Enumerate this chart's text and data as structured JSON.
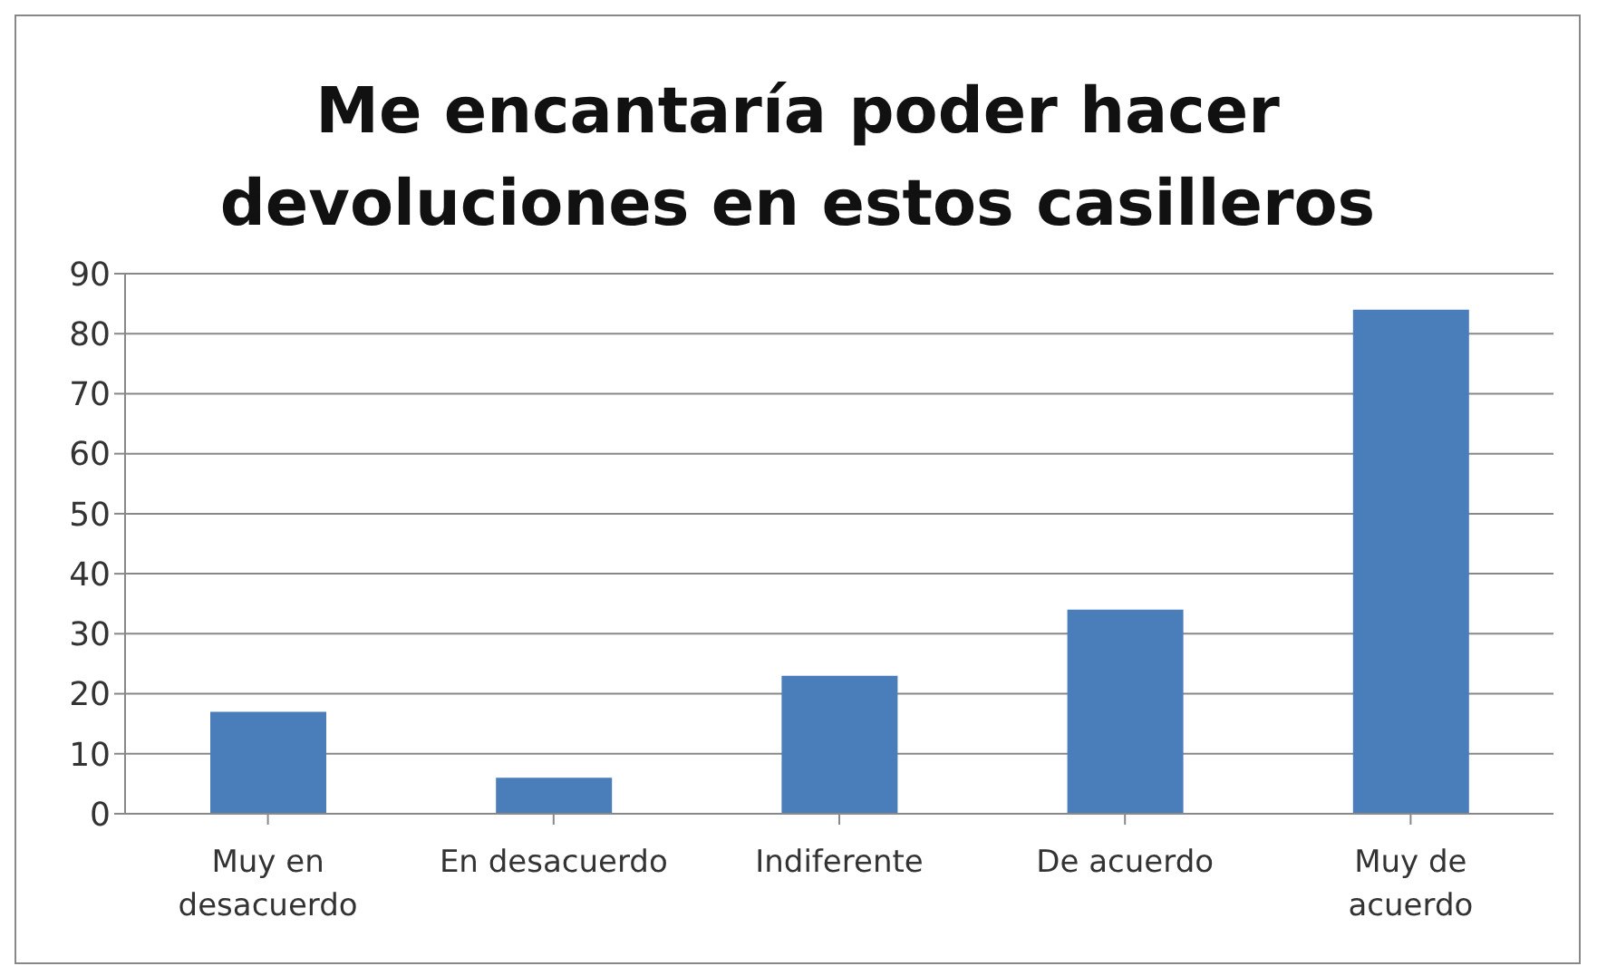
{
  "chart_data": {
    "type": "bar",
    "title": "Me encantaría poder hacer devoluciones en estos casilleros",
    "categories": [
      "Muy en desacuerdo",
      "En desacuerdo",
      "Indiferente",
      "De acuerdo",
      "Muy de acuerdo"
    ],
    "values": [
      17,
      6,
      23,
      34,
      84
    ],
    "color": "#4a7ebb",
    "ylim": [
      0,
      90
    ],
    "yticks": [
      0,
      10,
      20,
      30,
      40,
      50,
      60,
      70,
      80,
      90
    ],
    "grid": "y"
  }
}
